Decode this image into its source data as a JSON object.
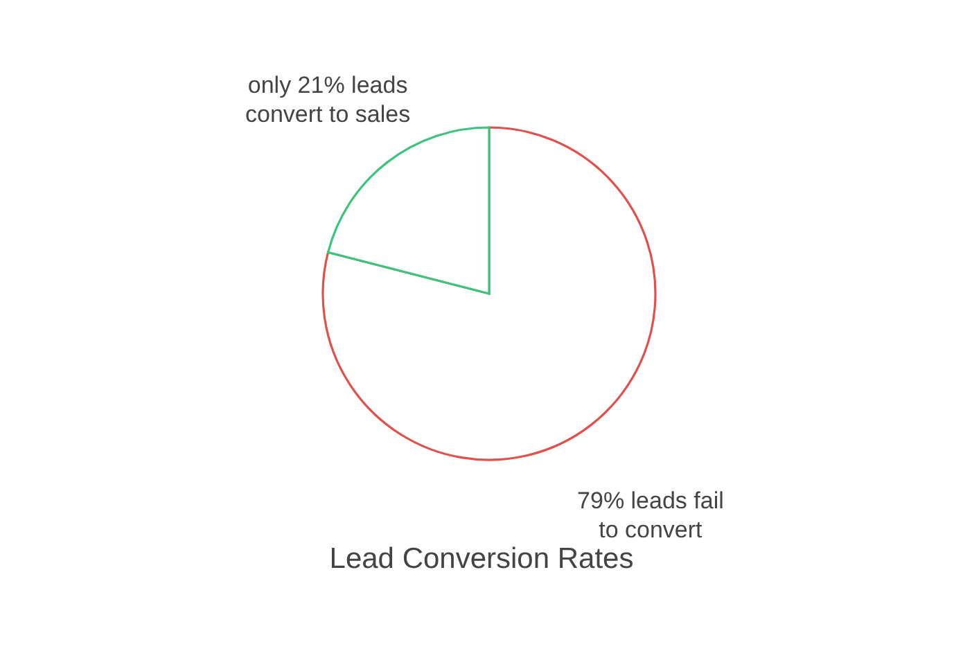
{
  "chart_data": {
    "type": "pie",
    "title": "Lead Conversion Rates",
    "categories": [
      "only 21% leads convert to sales",
      "79% leads fail to convert"
    ],
    "values": [
      21,
      79
    ],
    "colors": [
      "#3cc47c",
      "#e2504c"
    ]
  }
}
